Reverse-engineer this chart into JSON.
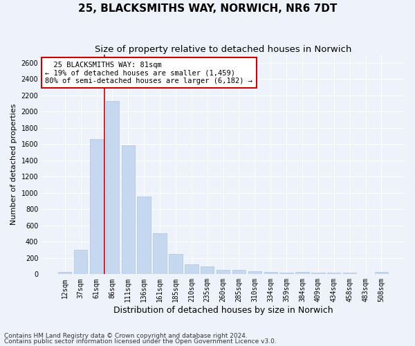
{
  "title": "25, BLACKSMITHS WAY, NORWICH, NR6 7DT",
  "subtitle": "Size of property relative to detached houses in Norwich",
  "xlabel": "Distribution of detached houses by size in Norwich",
  "ylabel": "Number of detached properties",
  "bar_color": "#c5d8f0",
  "bar_edgecolor": "#aac4e0",
  "categories": [
    "12sqm",
    "37sqm",
    "61sqm",
    "86sqm",
    "111sqm",
    "136sqm",
    "161sqm",
    "185sqm",
    "210sqm",
    "235sqm",
    "260sqm",
    "285sqm",
    "310sqm",
    "334sqm",
    "359sqm",
    "384sqm",
    "409sqm",
    "434sqm",
    "458sqm",
    "483sqm",
    "508sqm"
  ],
  "values": [
    25,
    300,
    1660,
    2130,
    1585,
    960,
    505,
    250,
    125,
    100,
    55,
    50,
    38,
    30,
    20,
    30,
    20,
    20,
    20,
    5,
    25
  ],
  "ylim": [
    0,
    2700
  ],
  "yticks": [
    0,
    200,
    400,
    600,
    800,
    1000,
    1200,
    1400,
    1600,
    1800,
    2000,
    2200,
    2400,
    2600
  ],
  "annotation_text": "  25 BLACKSMITHS WAY: 81sqm\n← 19% of detached houses are smaller (1,459)\n80% of semi-detached houses are larger (6,182) →",
  "annotation_box_color": "#ffffff",
  "annotation_border_color": "#cc0000",
  "redline_color": "#cc0000",
  "footnote1": "Contains HM Land Registry data © Crown copyright and database right 2024.",
  "footnote2": "Contains public sector information licensed under the Open Government Licence v3.0.",
  "background_color": "#eef2fb",
  "grid_color": "#ffffff",
  "title_fontsize": 11,
  "subtitle_fontsize": 9.5,
  "xlabel_fontsize": 9,
  "ylabel_fontsize": 8,
  "tick_fontsize": 7,
  "annotation_fontsize": 7.5,
  "footnote_fontsize": 6.5
}
